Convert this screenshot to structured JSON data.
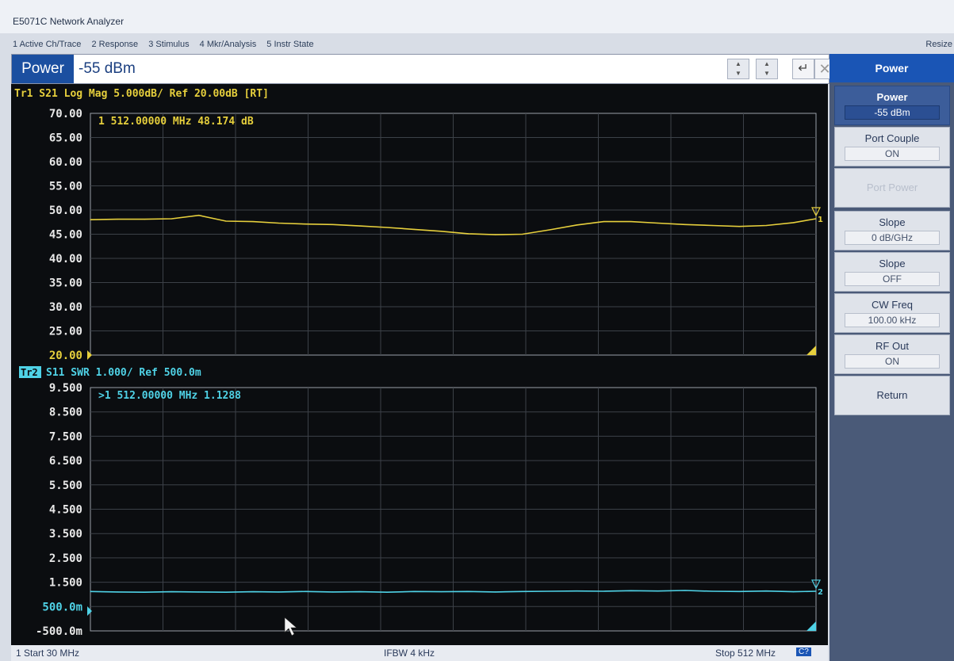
{
  "window": {
    "title": "E5071C Network Analyzer",
    "resize_label": "Resize"
  },
  "menu": [
    {
      "label": "1 Active Ch/Trace"
    },
    {
      "label": "2 Response"
    },
    {
      "label": "3 Stimulus"
    },
    {
      "label": "4 Mkr/Analysis"
    },
    {
      "label": "5 Instr State"
    }
  ],
  "entry": {
    "label": "Power",
    "value": "-55 dBm",
    "enter_icon": "enter-icon",
    "close_icon": "close-icon"
  },
  "softkeys": {
    "title": "Power",
    "items": [
      {
        "label": "Power",
        "value": "-55 dBm",
        "active": true
      },
      {
        "label": "Port Couple",
        "value": "ON"
      },
      {
        "label": "Port Power",
        "value": "",
        "disabled": true
      },
      {
        "label": "Slope",
        "value": "0 dB/GHz"
      },
      {
        "label": "Slope",
        "value": "OFF"
      },
      {
        "label": "CW Freq",
        "value": "100.00 kHz"
      },
      {
        "label": "RF Out",
        "value": "ON"
      },
      {
        "label": "Return",
        "value": ""
      }
    ]
  },
  "status": {
    "start": "1 Start 30 MHz",
    "ifbw": "IFBW 4 kHz",
    "stop": "Stop 512 MHz",
    "channel": "C?"
  },
  "chart_data": [
    {
      "type": "line",
      "title": "Tr1 S21 Log Mag 5.000dB/ Ref 20.00dB [RT]",
      "color": "#e6cf3c",
      "ylim": [
        20,
        70
      ],
      "yticks": [
        "70.00",
        "65.00",
        "60.00",
        "55.00",
        "50.00",
        "45.00",
        "40.00",
        "35.00",
        "30.00",
        "25.00",
        "20.00"
      ],
      "xlim": [
        30,
        512
      ],
      "xunit": "MHz",
      "marker_text": "1   512.00000 MHz  48.174 dB",
      "marker_label": "1",
      "x": [
        30,
        48,
        66,
        84,
        102,
        120,
        138,
        155,
        173,
        191,
        209,
        227,
        245,
        263,
        281,
        299,
        317,
        335,
        353,
        371,
        389,
        407,
        425,
        443,
        461,
        479,
        497,
        512
      ],
      "values": [
        48.0,
        48.1,
        48.1,
        48.2,
        48.9,
        47.7,
        47.6,
        47.3,
        47.1,
        47.0,
        46.7,
        46.4,
        46.0,
        45.6,
        45.1,
        44.9,
        45.0,
        45.9,
        46.9,
        47.6,
        47.6,
        47.3,
        47.0,
        46.8,
        46.6,
        46.8,
        47.4,
        48.2
      ]
    },
    {
      "type": "line",
      "title": "S11 SWR 1.000/ Ref 500.0m",
      "trace_tag": "Tr2",
      "color": "#4fd2e6",
      "ylim": [
        -0.5,
        9.5
      ],
      "yticks": [
        "9.500",
        "8.500",
        "7.500",
        "6.500",
        "5.500",
        "4.500",
        "3.500",
        "2.500",
        "1.500",
        "500.0m",
        "-500.0m"
      ],
      "xlim": [
        30,
        512
      ],
      "xunit": "MHz",
      "marker_text": ">1   512.00000 MHz  1.1288",
      "marker_label": "2",
      "x": [
        30,
        48,
        66,
        84,
        102,
        120,
        138,
        155,
        173,
        191,
        209,
        227,
        245,
        263,
        281,
        299,
        317,
        335,
        353,
        371,
        389,
        407,
        425,
        443,
        461,
        479,
        497,
        512
      ],
      "values": [
        1.12,
        1.1,
        1.09,
        1.11,
        1.1,
        1.09,
        1.11,
        1.1,
        1.12,
        1.1,
        1.11,
        1.09,
        1.12,
        1.11,
        1.12,
        1.1,
        1.12,
        1.13,
        1.14,
        1.13,
        1.15,
        1.14,
        1.16,
        1.13,
        1.12,
        1.14,
        1.11,
        1.13
      ]
    }
  ]
}
